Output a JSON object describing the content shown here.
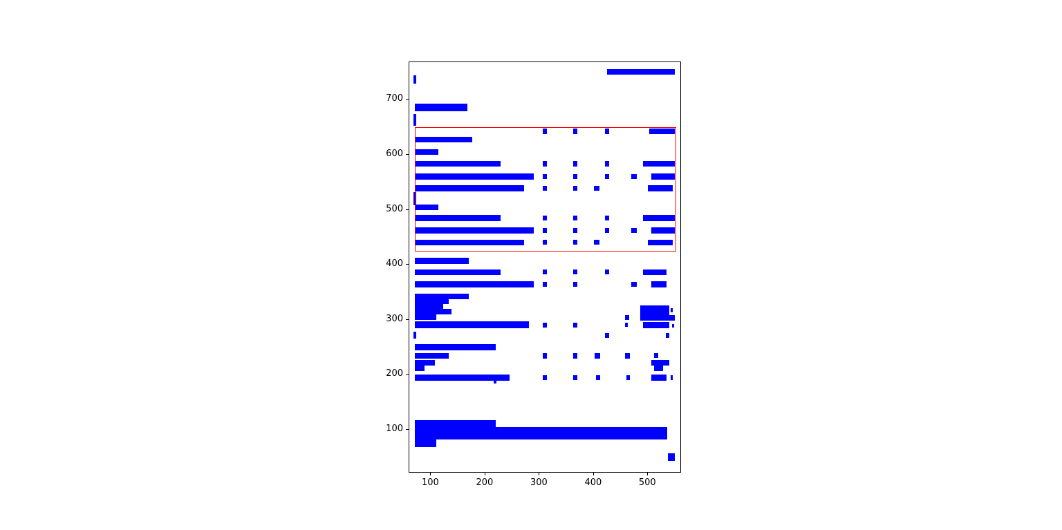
{
  "figure": {
    "background": "#ffffff",
    "bar_color": "#0000ff",
    "highlight_color": "#ff0000",
    "axis_color": "#000000",
    "tick_label_color": "#000000"
  },
  "chart_data": {
    "type": "bar",
    "orientation": "horizontal",
    "title": "",
    "xlabel": "",
    "ylabel": "",
    "grid": false,
    "legend": null,
    "xlim": [
      60,
      562
    ],
    "ylim": [
      21,
      768
    ],
    "x_ticks": [
      100,
      200,
      300,
      400,
      500
    ],
    "y_ticks": [
      100,
      200,
      300,
      400,
      500,
      600,
      700
    ],
    "rects_format": "x, y, width, height in data units",
    "highlight_rect": [
      70,
      424,
      482,
      226
    ],
    "rects": [
      [
        424,
        745,
        125,
        11
      ],
      [
        68,
        729,
        5,
        15
      ],
      [
        70,
        679,
        97,
        14
      ],
      [
        68,
        652,
        5,
        22
      ],
      [
        306,
        638,
        8,
        9
      ],
      [
        362,
        638,
        8,
        9
      ],
      [
        420,
        638,
        8,
        9
      ],
      [
        502,
        637,
        47,
        10
      ],
      [
        70,
        622,
        106,
        11
      ],
      [
        70,
        600,
        44,
        10
      ],
      [
        70,
        578,
        158,
        11
      ],
      [
        306,
        579,
        8,
        9
      ],
      [
        362,
        579,
        8,
        9
      ],
      [
        420,
        579,
        8,
        9
      ],
      [
        490,
        578,
        59,
        11
      ],
      [
        70,
        555,
        219,
        11
      ],
      [
        306,
        556,
        8,
        9
      ],
      [
        362,
        556,
        8,
        9
      ],
      [
        420,
        556,
        8,
        9
      ],
      [
        469,
        556,
        10,
        9
      ],
      [
        506,
        555,
        43,
        11
      ],
      [
        70,
        533,
        201,
        11
      ],
      [
        306,
        534,
        8,
        9
      ],
      [
        362,
        534,
        8,
        9
      ],
      [
        400,
        534,
        10,
        9
      ],
      [
        500,
        533,
        45,
        11
      ],
      [
        68,
        508,
        5,
        24
      ],
      [
        70,
        499,
        44,
        11
      ],
      [
        70,
        479,
        158,
        11
      ],
      [
        306,
        480,
        8,
        9
      ],
      [
        362,
        480,
        8,
        9
      ],
      [
        420,
        480,
        8,
        9
      ],
      [
        490,
        479,
        59,
        11
      ],
      [
        70,
        457,
        219,
        11
      ],
      [
        306,
        458,
        8,
        9
      ],
      [
        362,
        458,
        8,
        9
      ],
      [
        420,
        458,
        8,
        9
      ],
      [
        469,
        458,
        10,
        9
      ],
      [
        506,
        457,
        43,
        11
      ],
      [
        70,
        435,
        201,
        11
      ],
      [
        306,
        436,
        8,
        9
      ],
      [
        362,
        436,
        8,
        9
      ],
      [
        400,
        436,
        10,
        9
      ],
      [
        500,
        435,
        45,
        11
      ],
      [
        70,
        402,
        100,
        11
      ],
      [
        70,
        381,
        158,
        11
      ],
      [
        306,
        382,
        8,
        9
      ],
      [
        362,
        382,
        8,
        9
      ],
      [
        420,
        382,
        8,
        9
      ],
      [
        490,
        381,
        44,
        11
      ],
      [
        70,
        359,
        219,
        11
      ],
      [
        306,
        360,
        8,
        9
      ],
      [
        362,
        360,
        8,
        9
      ],
      [
        469,
        360,
        10,
        9
      ],
      [
        506,
        359,
        28,
        11
      ],
      [
        70,
        338,
        100,
        10
      ],
      [
        70,
        329,
        63,
        9
      ],
      [
        70,
        320,
        52,
        9
      ],
      [
        70,
        310,
        68,
        10
      ],
      [
        485,
        309,
        54,
        17
      ],
      [
        541,
        313,
        5,
        8
      ],
      [
        70,
        300,
        40,
        10
      ],
      [
        457,
        300,
        8,
        8
      ],
      [
        485,
        299,
        64,
        10
      ],
      [
        70,
        285,
        210,
        12
      ],
      [
        306,
        286,
        8,
        9
      ],
      [
        362,
        286,
        8,
        9
      ],
      [
        457,
        287,
        6,
        8
      ],
      [
        490,
        285,
        49,
        11
      ],
      [
        544,
        286,
        4,
        6
      ],
      [
        68,
        266,
        5,
        13
      ],
      [
        420,
        267,
        8,
        9
      ],
      [
        533,
        267,
        6,
        9
      ],
      [
        70,
        245,
        150,
        11
      ],
      [
        70,
        229,
        63,
        11
      ],
      [
        306,
        230,
        8,
        9
      ],
      [
        362,
        230,
        8,
        9
      ],
      [
        402,
        230,
        10,
        9
      ],
      [
        457,
        230,
        10,
        9
      ],
      [
        511,
        231,
        8,
        8
      ],
      [
        70,
        217,
        37,
        10
      ],
      [
        506,
        217,
        33,
        10
      ],
      [
        70,
        207,
        18,
        10
      ],
      [
        511,
        207,
        17,
        10
      ],
      [
        70,
        189,
        175,
        12
      ],
      [
        306,
        190,
        8,
        9
      ],
      [
        362,
        190,
        8,
        9
      ],
      [
        404,
        190,
        8,
        9
      ],
      [
        460,
        191,
        6,
        8
      ],
      [
        506,
        189,
        28,
        11
      ],
      [
        541,
        190,
        4,
        9
      ],
      [
        215,
        184,
        5,
        5
      ],
      [
        70,
        82,
        149,
        36
      ],
      [
        70,
        82,
        466,
        23
      ],
      [
        70,
        69,
        40,
        13
      ],
      [
        536,
        44,
        13,
        14
      ]
    ]
  }
}
